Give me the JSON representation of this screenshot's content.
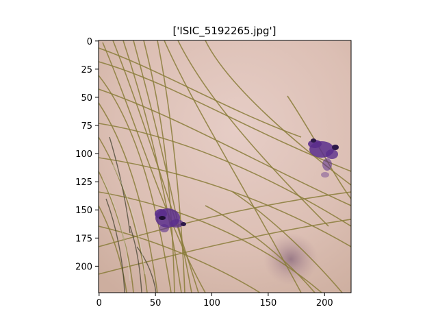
{
  "figure": {
    "title": "['ISIC_5192265.jpg']"
  },
  "axes": {
    "x_ticks": [
      "0",
      "50",
      "100",
      "150",
      "200"
    ],
    "y_ticks": [
      "0",
      "25",
      "50",
      "75",
      "100",
      "125",
      "150",
      "175",
      "200"
    ],
    "x_tick_values": [
      0,
      50,
      100,
      150,
      200
    ],
    "y_tick_values": [
      0,
      25,
      50,
      75,
      100,
      125,
      150,
      175,
      200
    ],
    "x_range": [
      0,
      224
    ],
    "y_range": [
      0,
      224
    ]
  },
  "image": {
    "subject": "dermoscopy image of skin with hairs and purple ink marks",
    "skin_color": "#dcc0b6",
    "hair_color": "#8a7d3a",
    "mark_color": "#5a2e8c",
    "lesion_color": "#9c7c8a"
  }
}
